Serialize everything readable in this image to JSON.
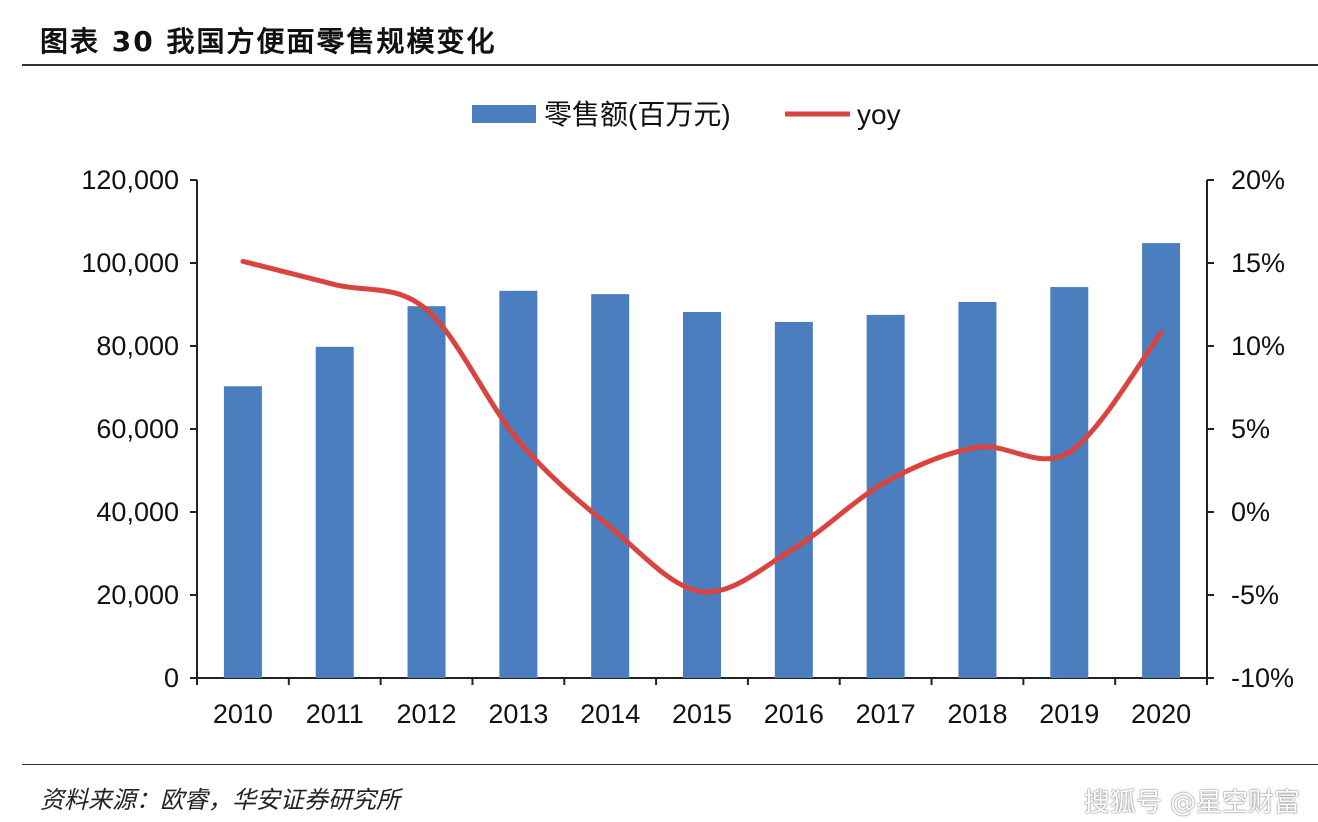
{
  "header": {
    "title": "图表 30 我国方便面零售规模变化"
  },
  "footer": {
    "source": "资料来源：欧睿，华安证券研究所",
    "watermark": "搜狐号 @星空财富"
  },
  "chart_data": {
    "type": "bar+line",
    "title": "",
    "categories": [
      "2010",
      "2011",
      "2012",
      "2013",
      "2014",
      "2015",
      "2016",
      "2017",
      "2018",
      "2019",
      "2020"
    ],
    "series": [
      {
        "name": "零售额(百万元)",
        "type": "bar",
        "axis": "left",
        "color": "#4a7ebf",
        "values": [
          70300,
          79800,
          89600,
          93300,
          92500,
          88200,
          85800,
          87500,
          90600,
          94200,
          104800
        ]
      },
      {
        "name": "yoy",
        "type": "line",
        "axis": "right",
        "color": "#d9443f",
        "values": [
          15.1,
          13.7,
          12.2,
          4.3,
          -0.9,
          -4.8,
          -2.2,
          1.8,
          3.9,
          3.6,
          10.8
        ]
      }
    ],
    "left_axis": {
      "range": [
        0,
        120000
      ],
      "ticks": [
        "0",
        "20,000",
        "40,000",
        "60,000",
        "80,000",
        "100,000",
        "120,000"
      ]
    },
    "right_axis": {
      "range": [
        -10,
        20
      ],
      "unit": "%",
      "ticks": [
        "-10%",
        "-5%",
        "0%",
        "5%",
        "10%",
        "15%",
        "20%"
      ]
    },
    "legend": "top-center",
    "grid": false
  }
}
